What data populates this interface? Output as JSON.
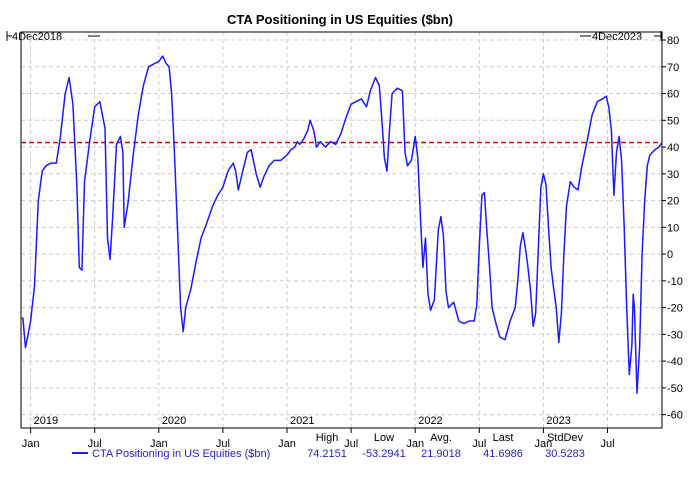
{
  "chart_data": {
    "type": "line",
    "title": "CTA Positioning in US Equities ($bn)",
    "range_start_label": "4Dec2018",
    "range_end_label": "4Dec2023",
    "ylim": [
      -65,
      83
    ],
    "y_ticks": [
      80,
      70,
      60,
      50,
      40,
      30,
      20,
      10,
      0,
      -10,
      -20,
      -30,
      -40,
      -50,
      -60
    ],
    "x_month_labels": [
      "Jan",
      "Jul",
      "Jan",
      "Jul",
      "Jan",
      "Jul",
      "Jan",
      "Jul",
      "Jan",
      "Jul"
    ],
    "x_month_positions": [
      2019.0,
      2019.5,
      2020.0,
      2020.5,
      2021.0,
      2021.5,
      2022.0,
      2022.5,
      2023.0,
      2023.5
    ],
    "year_labels": [
      "2019",
      "2020",
      "2021",
      "2022",
      "2023"
    ],
    "year_positions": [
      2019.0,
      2020.0,
      2021.0,
      2022.0,
      2023.0
    ],
    "x_range": [
      2018.925,
      2023.925
    ],
    "grid": true,
    "reference_line": {
      "value": 41.7,
      "color": "#dd0000",
      "style": "dashed"
    },
    "series": [
      {
        "name": "CTA Positioning in US Equities ($bn)",
        "color": "#1a1aff",
        "points": [
          [
            2018.925,
            -24
          ],
          [
            2018.94,
            -24
          ],
          [
            2018.96,
            -35
          ],
          [
            2018.98,
            -30
          ],
          [
            2019.0,
            -25
          ],
          [
            2019.03,
            -12
          ],
          [
            2019.06,
            20
          ],
          [
            2019.09,
            31
          ],
          [
            2019.12,
            33
          ],
          [
            2019.16,
            34
          ],
          [
            2019.2,
            34
          ],
          [
            2019.23,
            43
          ],
          [
            2019.27,
            60
          ],
          [
            2019.3,
            66
          ],
          [
            2019.33,
            56
          ],
          [
            2019.36,
            26
          ],
          [
            2019.38,
            -5
          ],
          [
            2019.4,
            -6
          ],
          [
            2019.42,
            27
          ],
          [
            2019.46,
            42
          ],
          [
            2019.5,
            55
          ],
          [
            2019.54,
            57
          ],
          [
            2019.58,
            47
          ],
          [
            2019.6,
            6
          ],
          [
            2019.62,
            -2
          ],
          [
            2019.64,
            14
          ],
          [
            2019.67,
            41
          ],
          [
            2019.7,
            44
          ],
          [
            2019.72,
            38
          ],
          [
            2019.73,
            10
          ],
          [
            2019.76,
            19
          ],
          [
            2019.8,
            37
          ],
          [
            2019.84,
            52
          ],
          [
            2019.88,
            63
          ],
          [
            2019.92,
            70
          ],
          [
            2019.96,
            71
          ],
          [
            2020.0,
            72
          ],
          [
            2020.03,
            74
          ],
          [
            2020.06,
            71
          ],
          [
            2020.08,
            70
          ],
          [
            2020.1,
            60
          ],
          [
            2020.12,
            40
          ],
          [
            2020.15,
            5
          ],
          [
            2020.17,
            -20
          ],
          [
            2020.19,
            -29
          ],
          [
            2020.21,
            -20
          ],
          [
            2020.25,
            -13
          ],
          [
            2020.29,
            -3
          ],
          [
            2020.33,
            6
          ],
          [
            2020.37,
            11
          ],
          [
            2020.42,
            18
          ],
          [
            2020.46,
            22
          ],
          [
            2020.5,
            25
          ],
          [
            2020.54,
            31
          ],
          [
            2020.58,
            34
          ],
          [
            2020.6,
            31
          ],
          [
            2020.62,
            24
          ],
          [
            2020.65,
            30
          ],
          [
            2020.69,
            38
          ],
          [
            2020.72,
            39
          ],
          [
            2020.76,
            30
          ],
          [
            2020.79,
            25
          ],
          [
            2020.82,
            29
          ],
          [
            2020.86,
            33
          ],
          [
            2020.9,
            35
          ],
          [
            2020.95,
            35
          ],
          [
            2021.0,
            37
          ],
          [
            2021.03,
            39
          ],
          [
            2021.06,
            40
          ],
          [
            2021.08,
            42
          ],
          [
            2021.1,
            41
          ],
          [
            2021.13,
            43
          ],
          [
            2021.16,
            46
          ],
          [
            2021.18,
            50
          ],
          [
            2021.21,
            46
          ],
          [
            2021.23,
            40
          ],
          [
            2021.26,
            42
          ],
          [
            2021.3,
            40
          ],
          [
            2021.34,
            42
          ],
          [
            2021.38,
            41
          ],
          [
            2021.42,
            45
          ],
          [
            2021.46,
            51
          ],
          [
            2021.5,
            56
          ],
          [
            2021.54,
            57
          ],
          [
            2021.58,
            58
          ],
          [
            2021.62,
            55
          ],
          [
            2021.65,
            61
          ],
          [
            2021.69,
            66
          ],
          [
            2021.72,
            63
          ],
          [
            2021.74,
            50
          ],
          [
            2021.76,
            36
          ],
          [
            2021.78,
            31
          ],
          [
            2021.8,
            47
          ],
          [
            2021.82,
            60
          ],
          [
            2021.86,
            62
          ],
          [
            2021.9,
            61
          ],
          [
            2021.92,
            38
          ],
          [
            2021.94,
            33
          ],
          [
            2021.97,
            35
          ],
          [
            2022.0,
            44
          ],
          [
            2022.02,
            36
          ],
          [
            2022.04,
            15
          ],
          [
            2022.06,
            -5
          ],
          [
            2022.08,
            6
          ],
          [
            2022.1,
            -15
          ],
          [
            2022.12,
            -21
          ],
          [
            2022.15,
            -17
          ],
          [
            2022.18,
            9
          ],
          [
            2022.2,
            14
          ],
          [
            2022.22,
            7
          ],
          [
            2022.24,
            -14
          ],
          [
            2022.26,
            -20
          ],
          [
            2022.3,
            -18
          ],
          [
            2022.34,
            -25
          ],
          [
            2022.38,
            -26
          ],
          [
            2022.42,
            -25
          ],
          [
            2022.46,
            -25
          ],
          [
            2022.48,
            -19
          ],
          [
            2022.5,
            3
          ],
          [
            2022.52,
            22
          ],
          [
            2022.54,
            23
          ],
          [
            2022.56,
            8
          ],
          [
            2022.58,
            -5
          ],
          [
            2022.6,
            -20
          ],
          [
            2022.63,
            -26
          ],
          [
            2022.66,
            -31
          ],
          [
            2022.7,
            -32
          ],
          [
            2022.74,
            -25
          ],
          [
            2022.78,
            -20
          ],
          [
            2022.8,
            -10
          ],
          [
            2022.82,
            3
          ],
          [
            2022.84,
            8
          ],
          [
            2022.86,
            2
          ],
          [
            2022.88,
            -5
          ],
          [
            2022.9,
            -14
          ],
          [
            2022.92,
            -27
          ],
          [
            2022.94,
            -22
          ],
          [
            2022.96,
            2
          ],
          [
            2022.98,
            25
          ],
          [
            2023.0,
            30
          ],
          [
            2023.02,
            26
          ],
          [
            2023.04,
            10
          ],
          [
            2023.06,
            -5
          ],
          [
            2023.08,
            -13
          ],
          [
            2023.1,
            -20
          ],
          [
            2023.12,
            -33
          ],
          [
            2023.14,
            -22
          ],
          [
            2023.16,
            0
          ],
          [
            2023.18,
            18
          ],
          [
            2023.21,
            27
          ],
          [
            2023.24,
            25
          ],
          [
            2023.27,
            24
          ],
          [
            2023.3,
            33
          ],
          [
            2023.34,
            42
          ],
          [
            2023.38,
            52
          ],
          [
            2023.42,
            57
          ],
          [
            2023.46,
            58
          ],
          [
            2023.49,
            59
          ],
          [
            2023.51,
            55
          ],
          [
            2023.53,
            46
          ],
          [
            2023.55,
            22
          ],
          [
            2023.57,
            38
          ],
          [
            2023.59,
            44
          ],
          [
            2023.61,
            35
          ],
          [
            2023.63,
            10
          ],
          [
            2023.65,
            -20
          ],
          [
            2023.67,
            -45
          ],
          [
            2023.69,
            -34
          ],
          [
            2023.7,
            -15
          ],
          [
            2023.71,
            -20
          ],
          [
            2023.73,
            -52
          ],
          [
            2023.75,
            -35
          ],
          [
            2023.77,
            0
          ],
          [
            2023.79,
            20
          ],
          [
            2023.81,
            33
          ],
          [
            2023.83,
            37
          ],
          [
            2023.85,
            38
          ],
          [
            2023.87,
            39
          ],
          [
            2023.9,
            40
          ],
          [
            2023.925,
            41.7
          ]
        ]
      }
    ],
    "stats": {
      "headers": [
        "High",
        "Low",
        "Avg.",
        "Last",
        "StdDev"
      ],
      "values": [
        "74.2151",
        "-53.2941",
        "21.9018",
        "41.6986",
        "30.5283"
      ]
    },
    "legend_placement": "bottom-left"
  }
}
